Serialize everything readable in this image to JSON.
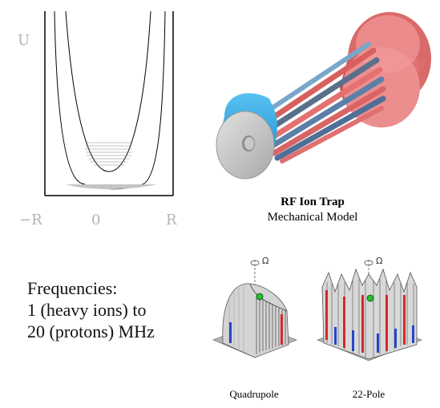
{
  "potential_plot": {
    "y_axis_label": "U",
    "x_ticks": [
      "−R",
      "0",
      "R"
    ]
  },
  "trap_model": {
    "title": "RF Ion Trap",
    "subtitle": "Mechanical Model"
  },
  "frequencies": {
    "line1": "Frequencies:",
    "line2": "1 (heavy ions) to",
    "line3": "20 (protons) MHz"
  },
  "surface_plots": {
    "rotation_symbol": "Ω",
    "quadrupole_caption": "Quadrupole",
    "pole22_caption": "22-Pole"
  },
  "colors": {
    "trap_red": "#e57373",
    "trap_blue": "#29a3e0",
    "trap_grey": "#bdbdbd",
    "electrode_red": "#d62828",
    "electrode_blue": "#2446c8",
    "ion_green": "#22c02a",
    "axis_grey": "#b3b3b3"
  }
}
